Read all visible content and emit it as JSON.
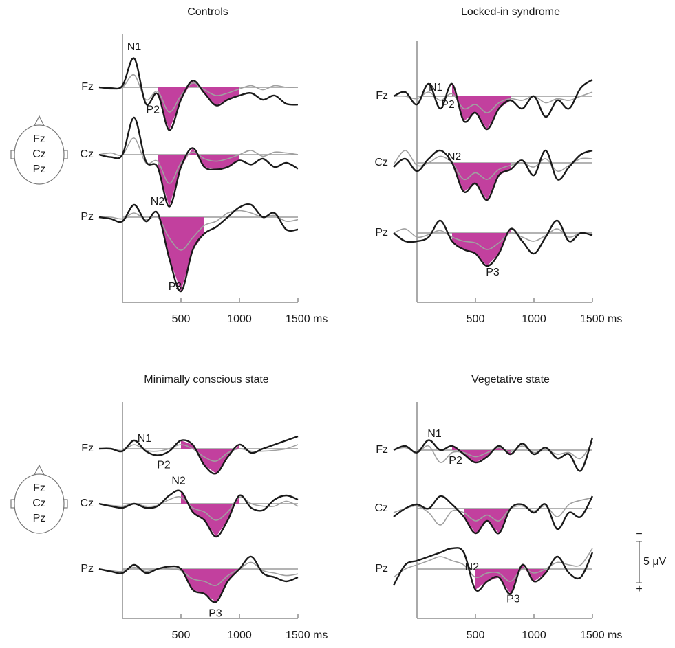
{
  "chart_data": [
    {
      "type": "line",
      "title": "Controls",
      "x": [
        -200,
        -100,
        0,
        100,
        200,
        300,
        400,
        500,
        600,
        700,
        800,
        900,
        1000,
        1100,
        1200,
        1300,
        1400,
        1500
      ],
      "xlim": [
        -200,
        1500
      ],
      "xticks": [
        500,
        1000,
        {
          "value": 1500,
          "label": "1500 ms"
        }
      ],
      "head": [
        "Fz",
        "Cz",
        "Pz"
      ],
      "highlight_color": "#c2409e",
      "electrodes": [
        {
          "name": "Fz",
          "highlight": [
            300,
            1000
          ],
          "series": [
            {
              "color": "#1a1a1a",
              "values": [
                0,
                0.1,
                -0.2,
                -3.5,
                2,
                0.8,
                5.2,
                1.5,
                -0.8,
                0.7,
                2.2,
                1.5,
                1,
                0.7,
                1.5,
                1,
                2,
                2.1
              ]
            },
            {
              "color": "#a0a0a0",
              "values": [
                0,
                0.2,
                0,
                -1.5,
                1.5,
                0.5,
                3,
                1,
                -0.5,
                0.3,
                1,
                0.7,
                0.2,
                -0.2,
                0.3,
                -0.2,
                0,
                0
              ]
            }
          ],
          "annotations": [
            {
              "text": "N1",
              "x": 100,
              "position": "above"
            },
            {
              "text": "P2",
              "x": 260,
              "position": "below"
            }
          ]
        },
        {
          "name": "Cz",
          "highlight": [
            300,
            1000
          ],
          "series": [
            {
              "color": "#1a1a1a",
              "values": [
                0,
                0.3,
                0,
                -4.5,
                0.8,
                1.5,
                6.3,
                1.5,
                -0.8,
                1.5,
                1.8,
                1.5,
                0.7,
                1.2,
                0.5,
                1.5,
                1,
                1.7
              ]
            },
            {
              "color": "#a0a0a0",
              "values": [
                0,
                -0.2,
                0,
                -2,
                1,
                0.8,
                3.5,
                1,
                -0.3,
                0.5,
                0.8,
                0.5,
                0,
                -0.5,
                0.2,
                -0.3,
                -0.2,
                0
              ]
            }
          ],
          "annotations": []
        },
        {
          "name": "Pz",
          "highlight": [
            300,
            700
          ],
          "series": [
            {
              "color": "#1a1a1a",
              "values": [
                0,
                0.2,
                0.5,
                -1.5,
                0.5,
                -0.5,
                5,
                9,
                4,
                2,
                1.2,
                0,
                -1.2,
                -1.5,
                0,
                -0.5,
                1.5,
                1.5
              ]
            },
            {
              "color": "#a0a0a0",
              "values": [
                0,
                0,
                0.2,
                -0.5,
                0.3,
                0,
                2.5,
                4,
                2.5,
                1,
                0.5,
                -0.5,
                -0.8,
                -0.5,
                0,
                -0.2,
                0.5,
                0.3
              ]
            }
          ],
          "annotations": [
            {
              "text": "N2",
              "x": 300,
              "position": "above"
            },
            {
              "text": "P3",
              "x": 450,
              "position": "below"
            }
          ]
        }
      ]
    },
    {
      "type": "line",
      "title": "Locked-in syndrome",
      "x": [
        -200,
        -100,
        0,
        100,
        200,
        300,
        400,
        500,
        600,
        700,
        800,
        900,
        1000,
        1100,
        1200,
        1300,
        1400,
        1500
      ],
      "xlim": [
        -200,
        1500
      ],
      "xticks": [
        500,
        1000,
        {
          "value": 1500,
          "label": "1500 ms"
        }
      ],
      "highlight_color": "#c2409e",
      "electrodes": [
        {
          "name": "Fz",
          "highlight": [
            300,
            800
          ],
          "series": [
            {
              "color": "#1a1a1a",
              "values": [
                0,
                -0.5,
                1,
                -1.5,
                1.5,
                -1.5,
                3,
                2,
                4,
                1.5,
                0.5,
                1.5,
                0,
                2.5,
                0.5,
                1.5,
                -1,
                -2
              ]
            },
            {
              "color": "#a0a0a0",
              "values": [
                0,
                0,
                0.3,
                -0.5,
                0.5,
                -0.3,
                1.5,
                1,
                2,
                0.8,
                0.3,
                0.5,
                0,
                0.8,
                0.3,
                0.5,
                0,
                -0.5
              ]
            }
          ],
          "annotations": [
            {
              "text": "N1",
              "x": 160,
              "position": "above"
            },
            {
              "text": "P2",
              "x": 265,
              "position": "below"
            }
          ]
        },
        {
          "name": "Cz",
          "highlight": [
            300,
            800
          ],
          "series": [
            {
              "color": "#1a1a1a",
              "values": [
                0.5,
                -0.5,
                1,
                -0.5,
                -1.5,
                0,
                3.5,
                2.5,
                4.5,
                1.5,
                0.8,
                -0.3,
                1.5,
                -1.5,
                2,
                0.5,
                -1,
                -1.5
              ]
            },
            {
              "color": "#a0a0a0",
              "values": [
                0.2,
                -1.5,
                0.3,
                0,
                -0.8,
                0,
                2,
                1.2,
                2,
                0.8,
                0.3,
                0,
                0.5,
                -0.5,
                1,
                0.3,
                -0.5,
                -0.5
              ]
            }
          ],
          "annotations": [
            {
              "text": "N2",
              "x": 318,
              "position": "above"
            }
          ]
        },
        {
          "name": "Pz",
          "highlight": [
            300,
            800
          ],
          "series": [
            {
              "color": "#1a1a1a",
              "values": [
                0,
                1,
                1,
                0.5,
                -1.5,
                1,
                2,
                2.5,
                4,
                2.5,
                -0.5,
                1,
                2.5,
                0.5,
                -1.5,
                1,
                0,
                0.3
              ]
            },
            {
              "color": "#a0a0a0",
              "values": [
                0,
                -0.5,
                0.5,
                0.2,
                -0.3,
                0.5,
                1,
                1.2,
                2,
                1.2,
                0,
                0.5,
                1,
                0.3,
                -0.5,
                0.5,
                0,
                0
              ]
            }
          ],
          "annotations": [
            {
              "text": "P3",
              "x": 647,
              "position": "below"
            }
          ]
        }
      ]
    },
    {
      "type": "line",
      "title": "Minimally conscious state",
      "x": [
        -200,
        -100,
        0,
        100,
        200,
        300,
        400,
        500,
        600,
        700,
        800,
        900,
        1000,
        1100,
        1200,
        1300,
        1400,
        1500
      ],
      "xlim": [
        -200,
        1500
      ],
      "xticks": [
        500,
        1000,
        {
          "value": 1500,
          "label": "1500 ms"
        }
      ],
      "head": [
        "Fz",
        "Cz",
        "Pz"
      ],
      "highlight_color": "#c2409e",
      "electrodes": [
        {
          "name": "Fz",
          "highlight": [
            500,
            1000
          ],
          "series": [
            {
              "color": "#1a1a1a",
              "values": [
                0,
                0,
                0.3,
                -1,
                0.3,
                0.8,
                0.3,
                -1,
                -0.5,
                2,
                3,
                1,
                -0.5,
                0.5,
                0,
                -0.5,
                -1,
                -1.5
              ]
            },
            {
              "color": "#a0a0a0",
              "values": [
                0,
                0,
                0.2,
                -0.5,
                0.2,
                0.3,
                0,
                -0.5,
                0,
                1,
                1.5,
                0.5,
                0,
                0.3,
                0.3,
                0.2,
                0,
                -0.5
              ]
            }
          ],
          "annotations": [
            {
              "text": "N1",
              "x": 188,
              "position": "above"
            },
            {
              "text": "P2",
              "x": 353,
              "position": "below"
            }
          ]
        },
        {
          "name": "Cz",
          "highlight": [
            500,
            1000
          ],
          "series": [
            {
              "color": "#1a1a1a",
              "values": [
                0,
                0.3,
                0.5,
                0,
                0.5,
                0.3,
                -1,
                -1.5,
                1,
                2,
                4,
                2,
                -1,
                0.5,
                0.8,
                -0.5,
                -1,
                -0.5
              ]
            },
            {
              "color": "#a0a0a0",
              "values": [
                0,
                0.2,
                0.3,
                0,
                0.3,
                0.2,
                -0.5,
                -0.8,
                0.5,
                1,
                2,
                1,
                -0.8,
                0,
                0.3,
                0.3,
                -0.3,
                0.3
              ]
            }
          ],
          "annotations": [
            {
              "text": "N2",
              "x": 480,
              "position": "above"
            }
          ]
        },
        {
          "name": "Pz",
          "highlight": [
            500,
            1000
          ],
          "series": [
            {
              "color": "#1a1a1a",
              "values": [
                0,
                0.3,
                0.5,
                -0.5,
                0.5,
                0,
                -0.3,
                0,
                2.5,
                3,
                4,
                1.5,
                0,
                -1.5,
                0.5,
                1,
                1.5,
                1
              ]
            },
            {
              "color": "#a0a0a0",
              "values": [
                0,
                0.2,
                0.3,
                -0.2,
                0.3,
                0,
                0,
                0.2,
                1.2,
                1.5,
                2,
                0.8,
                0,
                -0.8,
                0.2,
                0.5,
                0.8,
                0.6
              ]
            }
          ],
          "annotations": [
            {
              "text": "P3",
              "x": 794,
              "position": "below"
            }
          ]
        }
      ]
    },
    {
      "type": "line",
      "title": "Vegetative state",
      "x": [
        -200,
        -100,
        0,
        100,
        200,
        300,
        400,
        500,
        600,
        700,
        800,
        900,
        1000,
        1100,
        1200,
        1300,
        1400,
        1500
      ],
      "xlim": [
        -200,
        1500
      ],
      "xticks": [
        500,
        1000,
        {
          "value": 1500,
          "label": "1500 ms"
        }
      ],
      "highlight_color": "#c2409e",
      "scale_bar": {
        "value": 5,
        "label": "5 μV",
        "top": "−",
        "bottom": "+"
      },
      "electrodes": [
        {
          "name": "Fz",
          "highlight": [
            300,
            800
          ],
          "series": [
            {
              "color": "#1a1a1a",
              "values": [
                0,
                -0.5,
                0.3,
                -1.2,
                0,
                -0.5,
                0.5,
                1.5,
                0.8,
                -0.5,
                0.5,
                -0.8,
                0.5,
                -0.3,
                1,
                0.5,
                2.5,
                -1.5
              ]
            },
            {
              "color": "#a0a0a0",
              "values": [
                0,
                -0.3,
                0.3,
                -0.5,
                1.5,
                0.3,
                0.3,
                0.8,
                0.3,
                -0.3,
                0.2,
                -0.5,
                0.3,
                0,
                0.5,
                0.3,
                1,
                -1
              ]
            }
          ],
          "annotations": [
            {
              "text": "N1",
              "x": 150,
              "position": "above"
            },
            {
              "text": "P2",
              "x": 330,
              "position": "below"
            }
          ]
        },
        {
          "name": "Cz",
          "highlight": [
            400,
            800
          ],
          "series": [
            {
              "color": "#1a1a1a",
              "values": [
                1,
                0,
                -0.5,
                0,
                -1.5,
                -0.5,
                1,
                3,
                1.5,
                3,
                0,
                -0.5,
                0.5,
                -0.5,
                2.5,
                0.5,
                1,
                -1.5
              ]
            },
            {
              "color": "#a0a0a0",
              "values": [
                0.5,
                0,
                -0.3,
                0.5,
                2,
                0.3,
                0.5,
                1.5,
                0.8,
                1.5,
                0,
                -0.3,
                0.3,
                -0.3,
                1,
                -0.5,
                -1,
                -1.3
              ]
            }
          ],
          "annotations": []
        },
        {
          "name": "Pz",
          "highlight": [
            500,
            1100
          ],
          "series": [
            {
              "color": "#1a1a1a",
              "values": [
                2,
                -0.5,
                -1,
                -1.5,
                -2,
                -2.5,
                -2,
                2.5,
                1.5,
                1,
                3,
                -0.5,
                1.5,
                0.5,
                -1.5,
                0.5,
                1,
                -2
              ]
            },
            {
              "color": "#a0a0a0",
              "values": [
                1,
                0,
                -0.5,
                -1,
                -1.5,
                -1,
                -0.5,
                1,
                0.5,
                0.5,
                1.5,
                0,
                0.5,
                0,
                -0.8,
                -0.5,
                -0.5,
                -2.5
              ]
            }
          ],
          "annotations": [
            {
              "text": "N2",
              "x": 470,
              "position": "above"
            },
            {
              "text": "P3",
              "x": 823,
              "position": "below"
            }
          ]
        }
      ]
    }
  ]
}
